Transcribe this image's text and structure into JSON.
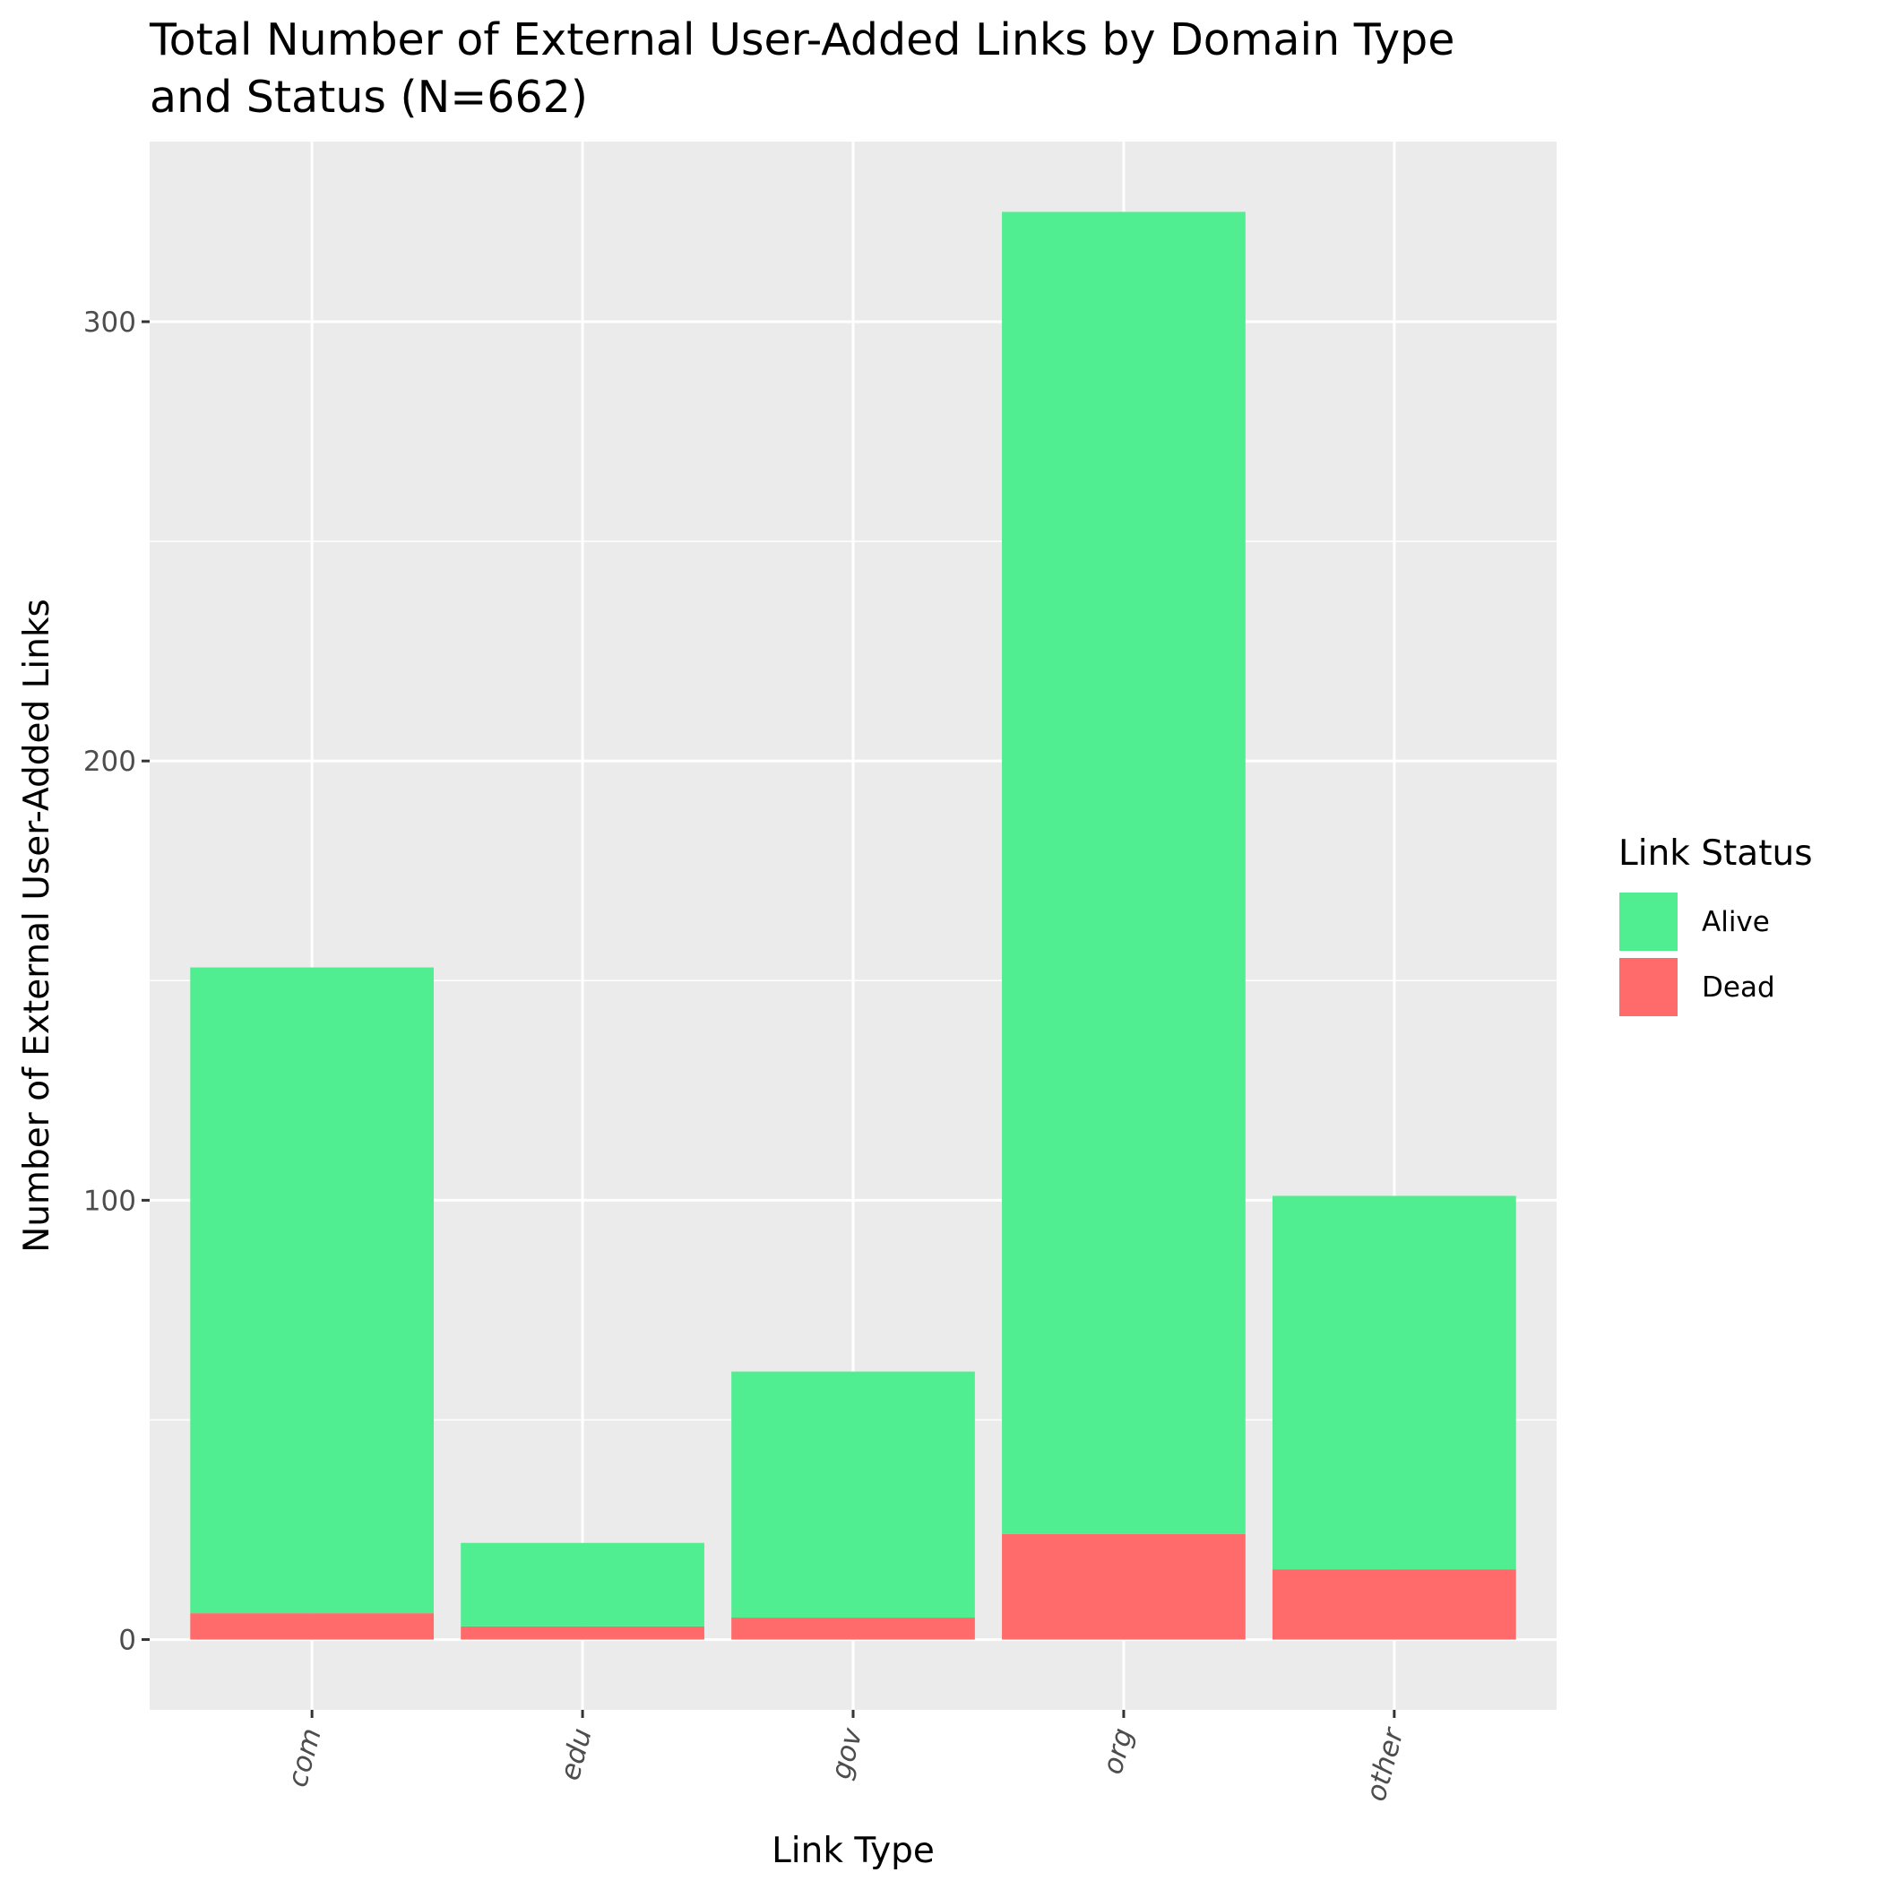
{
  "chart_data": {
    "type": "bar",
    "stacked": true,
    "title_lines": [
      "Total Number of External User-Added Links by Domain Type",
      "and Status (N=662)"
    ],
    "xlabel": "Link Type",
    "ylabel": "Number of External User-Added Links",
    "categories": [
      "com",
      "edu",
      "gov",
      "org",
      "other"
    ],
    "series": [
      {
        "name": "Dead",
        "color": "#ff6b6b",
        "values": [
          6,
          3,
          5,
          24,
          16
        ]
      },
      {
        "name": "Alive",
        "color": "#51ed91",
        "values": [
          147,
          19,
          56,
          301,
          85
        ]
      }
    ],
    "legend_order": [
      "Alive",
      "Dead"
    ],
    "ylim": [
      -16,
      341
    ],
    "yticks": [
      0,
      100,
      200,
      300
    ],
    "legend": {
      "title": "Link Status",
      "position": "right"
    },
    "grid": true
  }
}
